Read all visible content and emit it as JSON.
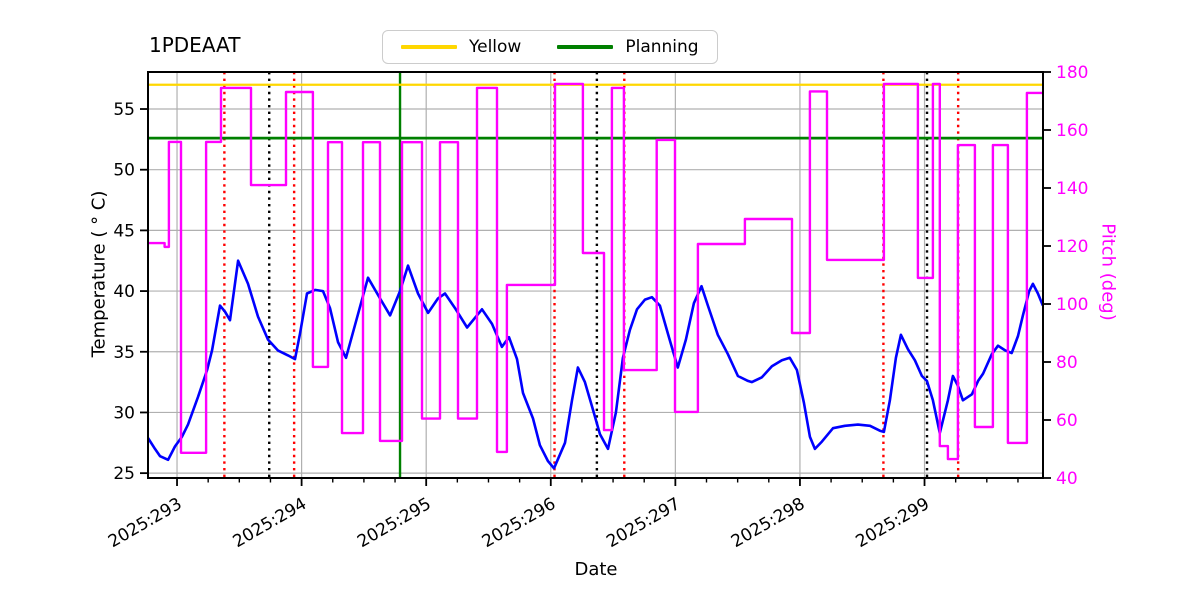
{
  "title": "1PDEAAT",
  "chart_data": {
    "type": "line",
    "title": "1PDEAAT",
    "xlabel": "Date",
    "ylabel_left": "Temperature ( ° C)",
    "ylabel_right": "Pitch (deg)",
    "xlim": [
      292.767,
      299.951
    ],
    "ylim_left": [
      24.6,
      58.05
    ],
    "ylim_right": [
      40,
      180
    ],
    "x_major_ticks": [
      293,
      294,
      295,
      296,
      297,
      298,
      299
    ],
    "x_tick_labels": [
      "2025:293",
      "2025:294",
      "2025:295",
      "2025:296",
      "2025:297",
      "2025:298",
      "2025:299"
    ],
    "x_minor_tick_interval": 0.25,
    "y_left_ticks": [
      25,
      30,
      35,
      40,
      45,
      50,
      55
    ],
    "y_right_ticks": [
      40,
      60,
      80,
      100,
      120,
      140,
      160,
      180
    ],
    "grid": true,
    "legend_position": "top-center",
    "legend": [
      {
        "label": "Yellow",
        "color": "#ffd700"
      },
      {
        "label": "Planning",
        "color": "#008000"
      }
    ],
    "hlines": [
      {
        "name": "Yellow",
        "value": 57.0,
        "axis": "left",
        "color": "#ffd700"
      },
      {
        "name": "Planning",
        "value": 52.6,
        "axis": "left",
        "color": "#008000"
      }
    ],
    "vlines": {
      "red_dotted_days": [
        293.38,
        293.94,
        296.03,
        296.59,
        298.67,
        299.27
      ],
      "black_dotted_days": [
        293.74,
        296.37,
        299.02
      ],
      "green_solid_days": [
        294.79
      ]
    },
    "series": [
      {
        "name": "temperature",
        "axis": "left",
        "style": "line",
        "color": "#0000ff",
        "points": [
          [
            292.767,
            27.9
          ],
          [
            292.823,
            27.0
          ],
          [
            292.864,
            26.4
          ],
          [
            292.928,
            26.1
          ],
          [
            292.984,
            27.2
          ],
          [
            293.04,
            28.0
          ],
          [
            293.088,
            29.0
          ],
          [
            293.169,
            31.3
          ],
          [
            293.241,
            33.5
          ],
          [
            293.281,
            35.1
          ],
          [
            293.345,
            38.8
          ],
          [
            293.385,
            38.3
          ],
          [
            293.425,
            37.6
          ],
          [
            293.49,
            42.5
          ],
          [
            293.57,
            40.6
          ],
          [
            293.65,
            37.9
          ],
          [
            293.73,
            36.0
          ],
          [
            293.811,
            35.1
          ],
          [
            293.891,
            34.7
          ],
          [
            293.947,
            34.4
          ],
          [
            293.987,
            36.5
          ],
          [
            294.043,
            39.8
          ],
          [
            294.108,
            40.1
          ],
          [
            294.172,
            40.0
          ],
          [
            294.228,
            38.6
          ],
          [
            294.292,
            35.8
          ],
          [
            294.356,
            34.5
          ],
          [
            294.445,
            37.8
          ],
          [
            294.533,
            41.1
          ],
          [
            294.629,
            39.4
          ],
          [
            294.71,
            38.0
          ],
          [
            294.79,
            40.0
          ],
          [
            294.854,
            42.1
          ],
          [
            294.934,
            39.8
          ],
          [
            295.015,
            38.2
          ],
          [
            295.095,
            39.4
          ],
          [
            295.151,
            39.8
          ],
          [
            295.231,
            38.6
          ],
          [
            295.328,
            37.0
          ],
          [
            295.392,
            37.8
          ],
          [
            295.448,
            38.5
          ],
          [
            295.528,
            37.3
          ],
          [
            295.608,
            35.4
          ],
          [
            295.665,
            36.2
          ],
          [
            295.729,
            34.4
          ],
          [
            295.777,
            31.6
          ],
          [
            295.857,
            29.5
          ],
          [
            295.913,
            27.3
          ],
          [
            295.977,
            26.0
          ],
          [
            296.026,
            25.4
          ],
          [
            296.114,
            27.5
          ],
          [
            296.17,
            31.0
          ],
          [
            296.218,
            33.7
          ],
          [
            296.274,
            32.5
          ],
          [
            296.331,
            30.5
          ],
          [
            296.395,
            28.2
          ],
          [
            296.459,
            27.0
          ],
          [
            296.523,
            30.0
          ],
          [
            296.579,
            34.5
          ],
          [
            296.635,
            36.8
          ],
          [
            296.692,
            38.5
          ],
          [
            296.756,
            39.3
          ],
          [
            296.812,
            39.5
          ],
          [
            296.876,
            38.8
          ],
          [
            296.94,
            36.5
          ],
          [
            296.988,
            34.8
          ],
          [
            297.02,
            33.7
          ],
          [
            297.085,
            36.0
          ],
          [
            297.149,
            39.0
          ],
          [
            297.21,
            40.4
          ],
          [
            297.261,
            38.8
          ],
          [
            297.341,
            36.4
          ],
          [
            297.422,
            34.8
          ],
          [
            297.502,
            33.0
          ],
          [
            297.582,
            32.6
          ],
          [
            297.614,
            32.5
          ],
          [
            297.695,
            32.9
          ],
          [
            297.775,
            33.8
          ],
          [
            297.855,
            34.3
          ],
          [
            297.919,
            34.5
          ],
          [
            297.976,
            33.5
          ],
          [
            298.032,
            30.8
          ],
          [
            298.08,
            28.0
          ],
          [
            298.12,
            27.0
          ],
          [
            298.176,
            27.6
          ],
          [
            298.265,
            28.7
          ],
          [
            298.361,
            28.9
          ],
          [
            298.465,
            29.0
          ],
          [
            298.562,
            28.9
          ],
          [
            298.642,
            28.5
          ],
          [
            298.674,
            28.4
          ],
          [
            298.722,
            31.0
          ],
          [
            298.77,
            34.5
          ],
          [
            298.81,
            36.4
          ],
          [
            298.867,
            35.2
          ],
          [
            298.923,
            34.3
          ],
          [
            298.979,
            33.0
          ],
          [
            299.019,
            32.6
          ],
          [
            299.067,
            31.0
          ],
          [
            299.123,
            28.3
          ],
          [
            299.188,
            31.0
          ],
          [
            299.228,
            33.0
          ],
          [
            299.268,
            32.2
          ],
          [
            299.308,
            31.0
          ],
          [
            299.38,
            31.5
          ],
          [
            299.43,
            32.6
          ],
          [
            299.47,
            33.2
          ],
          [
            299.54,
            34.8
          ],
          [
            299.59,
            35.5
          ],
          [
            299.65,
            35.1
          ],
          [
            299.7,
            34.9
          ],
          [
            299.75,
            36.3
          ],
          [
            299.79,
            38.0
          ],
          [
            299.84,
            40.0
          ],
          [
            299.87,
            40.6
          ],
          [
            299.91,
            39.8
          ],
          [
            299.95,
            38.8
          ]
        ]
      },
      {
        "name": "pitch",
        "axis": "right",
        "style": "step",
        "color": "#ff00ff",
        "points": [
          [
            292.767,
            121.0
          ],
          [
            292.9,
            119.7
          ],
          [
            292.935,
            155.9
          ],
          [
            293.032,
            48.7
          ],
          [
            293.233,
            155.9
          ],
          [
            293.353,
            174.5
          ],
          [
            293.594,
            141.0
          ],
          [
            293.875,
            173.1
          ],
          [
            294.091,
            78.3
          ],
          [
            294.212,
            155.8
          ],
          [
            294.324,
            55.5
          ],
          [
            294.493,
            155.8
          ],
          [
            294.629,
            52.8
          ],
          [
            294.806,
            155.8
          ],
          [
            294.966,
            60.5
          ],
          [
            295.111,
            155.8
          ],
          [
            295.255,
            60.5
          ],
          [
            295.408,
            174.5
          ],
          [
            295.568,
            49.0
          ],
          [
            295.648,
            106.6
          ],
          [
            296.034,
            175.9
          ],
          [
            296.258,
            117.6
          ],
          [
            296.427,
            56.5
          ],
          [
            296.491,
            174.5
          ],
          [
            296.587,
            77.2
          ],
          [
            296.85,
            156.6
          ],
          [
            296.997,
            62.8
          ],
          [
            297.181,
            120.7
          ],
          [
            297.558,
            129.3
          ],
          [
            297.936,
            90.0
          ],
          [
            298.08,
            173.3
          ],
          [
            298.217,
            115.2
          ],
          [
            298.674,
            175.9
          ],
          [
            298.947,
            109.0
          ],
          [
            299.067,
            175.9
          ],
          [
            299.123,
            51.0
          ],
          [
            299.188,
            46.5
          ],
          [
            299.268,
            154.8
          ],
          [
            299.404,
            57.6
          ],
          [
            299.549,
            154.8
          ],
          [
            299.669,
            52.1
          ],
          [
            299.822,
            172.8
          ]
        ]
      }
    ],
    "colors": {
      "grid": "#b0b0b0",
      "spine": "#000000",
      "x_tick_label": "#000000",
      "y_left_tick_label": "#000000",
      "y_right_tick_label": "#ff00ff",
      "red_vline": "#ff0000",
      "black_vline": "#000000",
      "green_vline": "#008000"
    }
  }
}
